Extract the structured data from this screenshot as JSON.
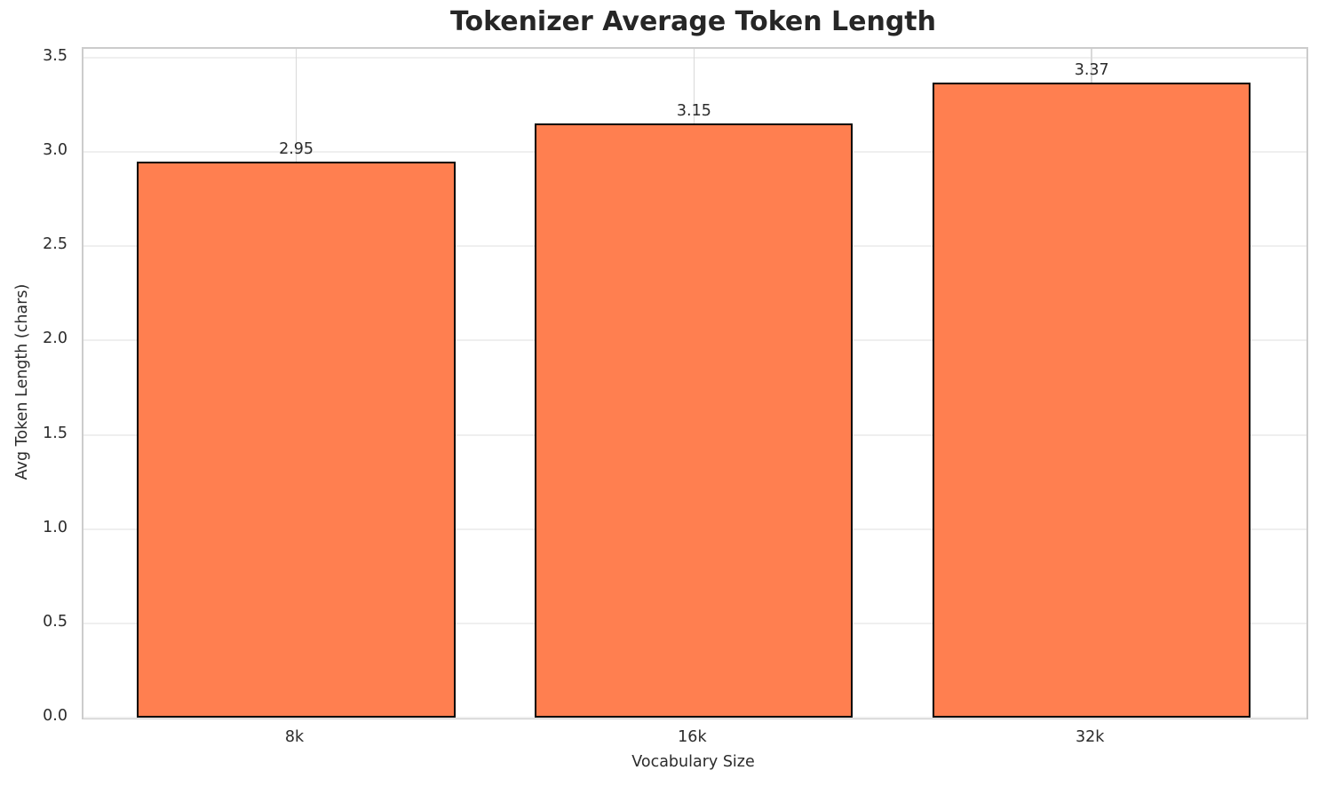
{
  "chart_data": {
    "type": "bar",
    "title": "Tokenizer Average Token Length",
    "xlabel": "Vocabulary Size",
    "ylabel": "Avg Token Length (chars)",
    "categories": [
      "8k",
      "16k",
      "32k"
    ],
    "values": [
      2.95,
      3.15,
      3.37
    ],
    "bar_labels": [
      "2.95",
      "3.15",
      "3.37"
    ],
    "series": [
      {
        "name": "Avg Token Length (chars)",
        "values": [
          2.95,
          3.15,
          3.37
        ]
      }
    ],
    "yticks": [
      0.0,
      0.5,
      1.0,
      1.5,
      2.0,
      2.5,
      3.0,
      3.5
    ],
    "ytick_labels": [
      "0.0",
      "0.5",
      "1.0",
      "1.5",
      "2.0",
      "2.5",
      "3.0",
      "3.5"
    ],
    "ylim": [
      0,
      3.547
    ],
    "xlim": [
      -0.535,
      2.54
    ],
    "bar_width_units": 0.8,
    "grid": true,
    "legend": "none",
    "colors": {
      "bar_fill": "#ff7f50",
      "bar_edge": "#000000",
      "grid_horizontal": "#efefef",
      "grid_vertical": "#d9d9d9",
      "spine": "#cccccc",
      "title_text": "#262626",
      "tick_text": "#2b2b2b"
    }
  }
}
